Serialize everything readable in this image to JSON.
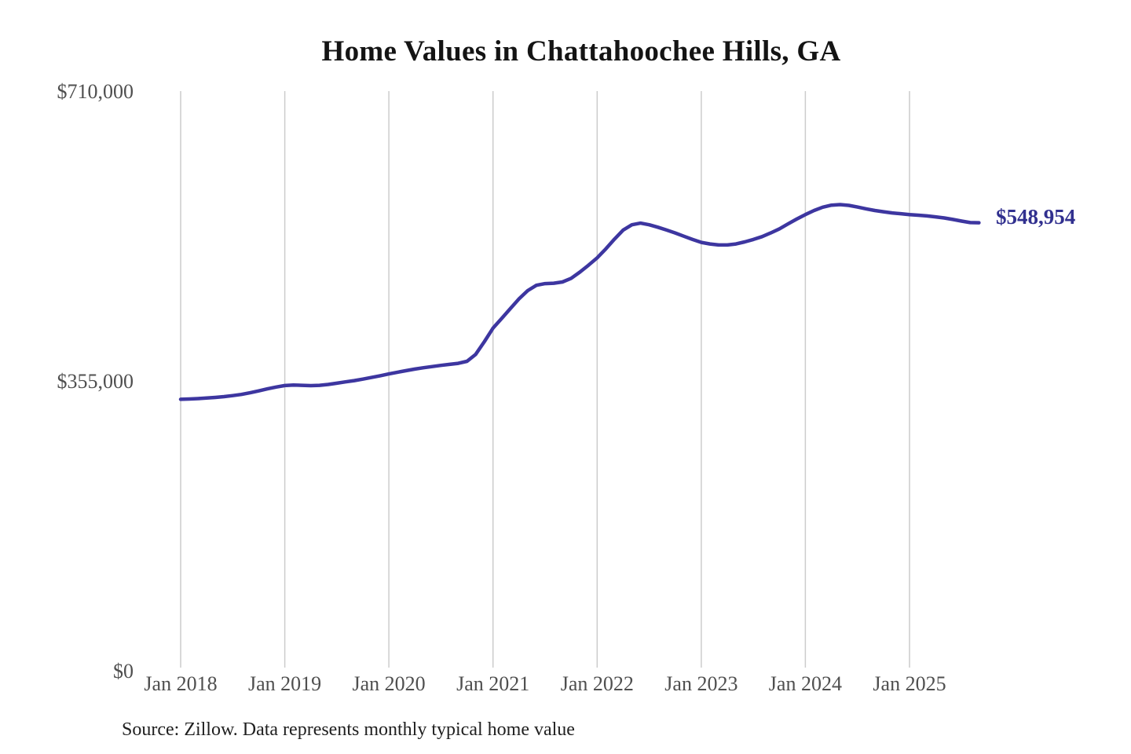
{
  "chart_data": {
    "type": "line",
    "title": "Home Values in Chattahoochee Hills, GA",
    "source": "Source: Zillow. Data represents monthly typical home value",
    "end_label": "$548,954",
    "xlabel": "",
    "ylabel": "",
    "ylim": [
      0,
      710000
    ],
    "y_tick_labels": [
      "$0",
      "$355,000",
      "$710,000"
    ],
    "x_tick_labels": [
      "Jan 2018",
      "Jan 2019",
      "Jan 2020",
      "Jan 2021",
      "Jan 2022",
      "Jan 2023",
      "Jan 2024",
      "Jan 2025"
    ],
    "grid": "vertical-only",
    "legend": "none",
    "colors": {
      "line": "#3d36a0",
      "accent": "#31308f",
      "grid": "#cccccc",
      "axis_text": "#4f4f4f",
      "title_text": "#141414"
    },
    "series": [
      {
        "name": "Typical home value",
        "months": [
          "2018-01",
          "2018-02",
          "2018-03",
          "2018-04",
          "2018-05",
          "2018-06",
          "2018-07",
          "2018-08",
          "2018-09",
          "2018-10",
          "2018-11",
          "2018-12",
          "2019-01",
          "2019-02",
          "2019-03",
          "2019-04",
          "2019-05",
          "2019-06",
          "2019-07",
          "2019-08",
          "2019-09",
          "2019-10",
          "2019-11",
          "2019-12",
          "2020-01",
          "2020-02",
          "2020-03",
          "2020-04",
          "2020-05",
          "2020-06",
          "2020-07",
          "2020-08",
          "2020-09",
          "2020-10",
          "2020-11",
          "2020-12",
          "2021-01",
          "2021-02",
          "2021-03",
          "2021-04",
          "2021-05",
          "2021-06",
          "2021-07",
          "2021-08",
          "2021-09",
          "2021-10",
          "2021-11",
          "2021-12",
          "2022-01",
          "2022-02",
          "2022-03",
          "2022-04",
          "2022-05",
          "2022-06",
          "2022-07",
          "2022-08",
          "2022-09",
          "2022-10",
          "2022-11",
          "2022-12",
          "2023-01",
          "2023-02",
          "2023-03",
          "2023-04",
          "2023-05",
          "2023-06",
          "2023-07",
          "2023-08",
          "2023-09",
          "2023-10",
          "2023-11",
          "2023-12",
          "2024-01",
          "2024-02",
          "2024-03",
          "2024-04",
          "2024-05",
          "2024-06",
          "2024-07",
          "2024-08",
          "2024-09",
          "2024-10",
          "2024-11",
          "2024-12",
          "2025-01",
          "2025-02",
          "2025-03",
          "2025-04",
          "2025-05",
          "2025-06",
          "2025-07",
          "2025-08",
          "2025-09"
        ],
        "values": [
          333000,
          333400,
          333900,
          334500,
          335300,
          336300,
          337500,
          339000,
          341000,
          343300,
          345800,
          348000,
          349800,
          350400,
          350100,
          349700,
          350100,
          351200,
          352700,
          354300,
          355900,
          357700,
          359700,
          361800,
          364000,
          366100,
          368100,
          370000,
          371600,
          373100,
          374500,
          375800,
          377000,
          379500,
          388000,
          403500,
          420000,
          432000,
          444000,
          456000,
          466000,
          472500,
          474500,
          475000,
          476500,
          481000,
          488500,
          497000,
          506000,
          517000,
          529000,
          540000,
          546500,
          548500,
          546500,
          543500,
          540000,
          536500,
          532500,
          528500,
          525000,
          523000,
          521800,
          521800,
          523000,
          525500,
          528500,
          532000,
          536500,
          541500,
          547500,
          553500,
          559000,
          564000,
          568000,
          570500,
          571200,
          570200,
          568200,
          566000,
          564000,
          562400,
          561000,
          560000,
          559000,
          558200,
          557300,
          556200,
          554800,
          553000,
          551000,
          549200,
          548954
        ]
      }
    ]
  }
}
